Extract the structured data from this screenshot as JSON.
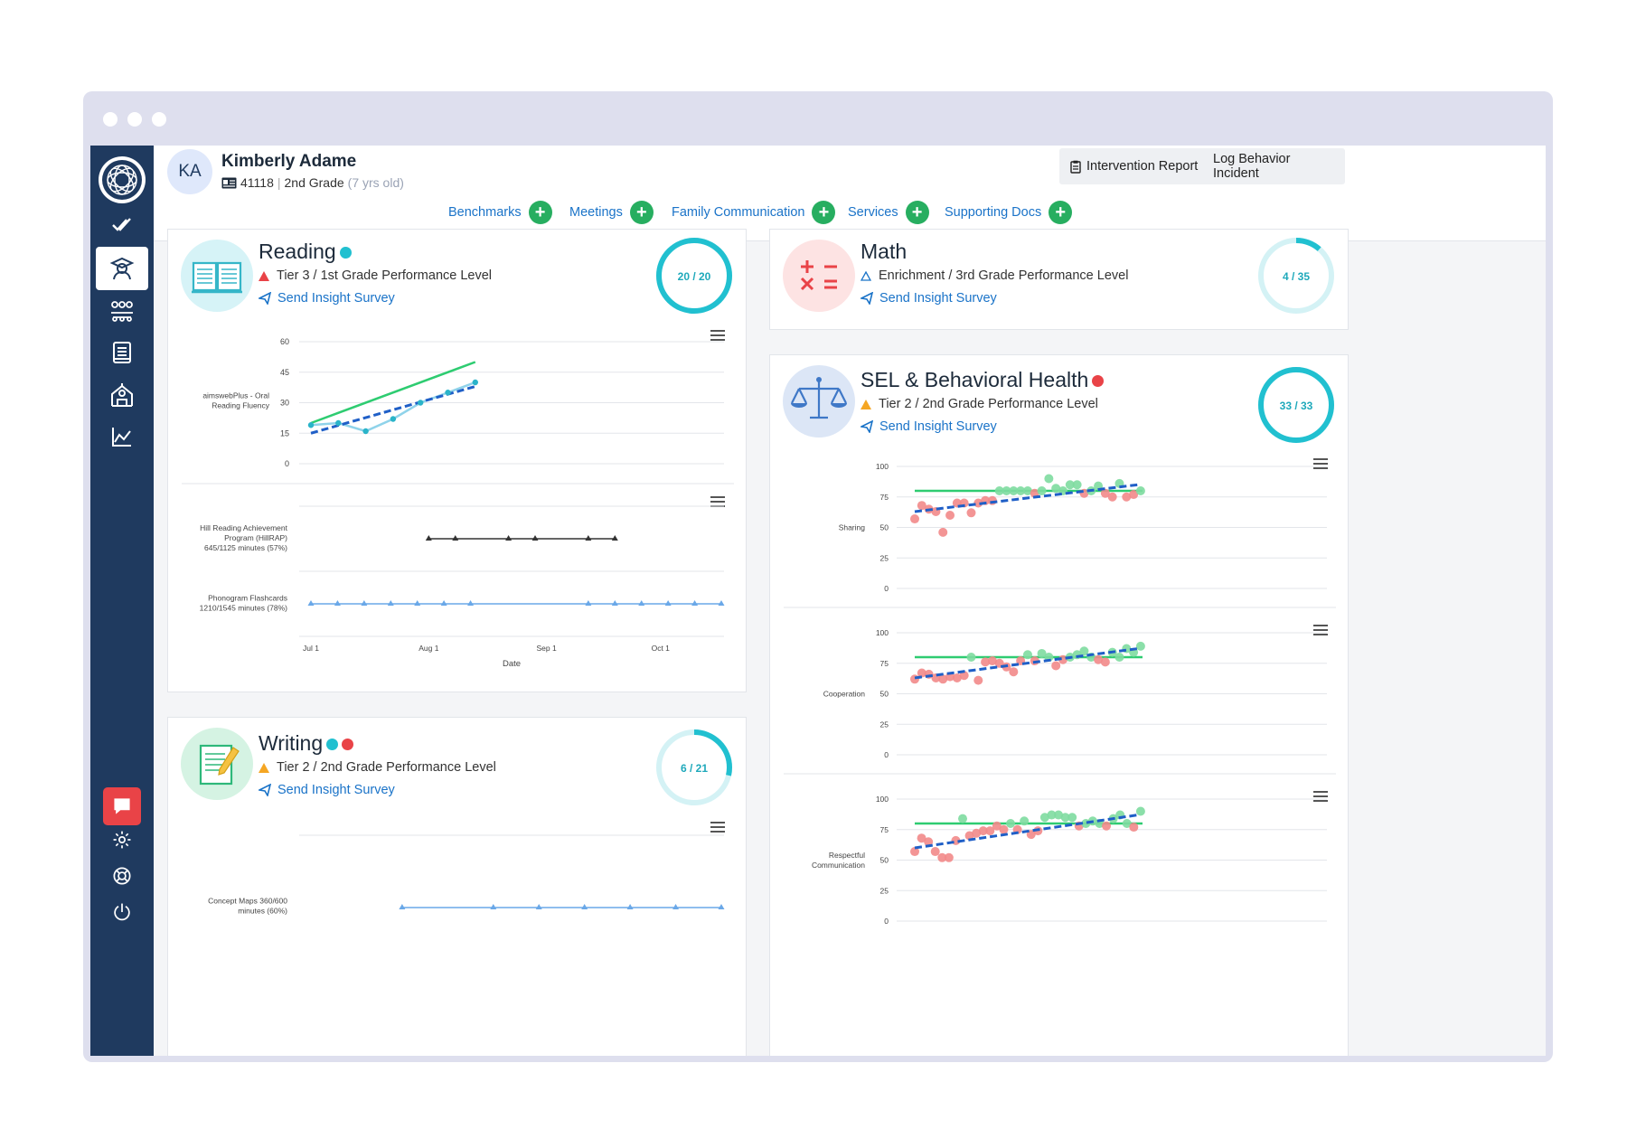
{
  "student": {
    "initials": "KA",
    "name": "Kimberly Adame",
    "id": "41118",
    "grade": "2nd Grade",
    "age": "(7 yrs old)"
  },
  "actions": {
    "intervention_report": "Intervention Report",
    "log_behavior": "Log Behavior Incident"
  },
  "nav": [
    {
      "label": "Benchmarks"
    },
    {
      "label": "Meetings"
    },
    {
      "label": "Family Communication"
    },
    {
      "label": "Services"
    },
    {
      "label": "Supporting Docs"
    }
  ],
  "sidebar_icons": [
    "logo-icon",
    "checkmark-icon",
    "student-icon",
    "group-icon",
    "book-icon",
    "school-icon",
    "chart-icon",
    "chat-icon",
    "settings-icon",
    "support-icon",
    "power-icon"
  ],
  "colors": {
    "sidebar": "#1f3a5f",
    "accent": "#1a73c8",
    "ring": "#21c0d0",
    "plus": "#27ae60",
    "alert": "#e94347",
    "warn": "#f5a623",
    "trend_actual": "#2ecc71",
    "trend_dash": "#1f5fc7"
  },
  "reading": {
    "title": "Reading",
    "tier": "Tier 3 / 1st Grade Performance Level",
    "survey": "Send Insight Survey",
    "progress_label": "20 / 20",
    "progress": 1.0
  },
  "math": {
    "title": "Math",
    "tier": "Enrichment / 3rd Grade Performance Level",
    "survey": "Send Insight Survey",
    "progress_label": "4 / 35",
    "progress": 0.114
  },
  "writing": {
    "title": "Writing",
    "tier": "Tier 2 / 2nd Grade Performance Level",
    "survey": "Send Insight Survey",
    "progress_label": "6 / 21",
    "progress": 0.286
  },
  "sel": {
    "title": "SEL & Behavioral Health",
    "tier": "Tier 2 / 2nd Grade Performance Level",
    "survey": "Send Insight Survey",
    "progress_label": "33 / 33",
    "progress": 1.0
  },
  "chart_data": [
    {
      "type": "line",
      "ylabel": "aimswebPlus - Oral Reading Fluency",
      "ylim": [
        0,
        60
      ],
      "yticks": [
        "60",
        "45",
        "30",
        "15",
        "0"
      ],
      "x": [
        "Jul 1",
        "Jul 8",
        "Jul 15",
        "Jul 22",
        "Jul 29",
        "Aug 5",
        "Aug 12"
      ],
      "series": [
        {
          "values": [
            19,
            20,
            16,
            22,
            30,
            35,
            40
          ]
        }
      ],
      "goal_line": [
        20,
        50
      ],
      "trend": [
        15,
        38
      ]
    },
    {
      "type": "line",
      "series": [
        {
          "name": "Hill Reading Achievement Program (HillRAP) 645/1125 minutes (57%)",
          "x": [
            "Aug 1",
            "Aug 8",
            "Aug 22",
            "Aug 29",
            "Sep 12",
            "Sep 19"
          ]
        },
        {
          "name": "Phonogram Flashcards 1210/1545 minutes (78%)",
          "x": [
            "Jul 1",
            "Jul 8",
            "Jul 15",
            "Jul 22",
            "Jul 29",
            "Aug 5",
            "Aug 12",
            "Sep 12",
            "Sep 19",
            "Sep 26",
            "Oct 3",
            "Oct 10",
            "Oct 17"
          ]
        }
      ],
      "xticks": [
        "Jul 1",
        "Aug 1",
        "Sep 1",
        "Oct 1"
      ],
      "xlabel": "Date"
    },
    {
      "type": "line",
      "series": [
        {
          "name": "Concept Maps 360/600 minutes (60%)",
          "x": [
            "Jul 29",
            "Aug 26",
            "Sep 9",
            "Sep 23",
            "Oct 7",
            "Oct 21",
            "Nov 4"
          ]
        }
      ]
    },
    {
      "type": "scatter",
      "ylabel": "Sharing",
      "ylim": [
        0,
        100
      ],
      "yticks": [
        "100",
        "75",
        "50",
        "25",
        "0"
      ],
      "goal": 80,
      "trend": [
        63,
        85
      ],
      "values": [
        57,
        68,
        65,
        63,
        46,
        60,
        70,
        70,
        62,
        70,
        72,
        72,
        80,
        80,
        80,
        80,
        80,
        78,
        80,
        90,
        82,
        80,
        85,
        85,
        78,
        80,
        84,
        78,
        75,
        86,
        75,
        77,
        80
      ]
    },
    {
      "type": "scatter",
      "ylabel": "Cooperation",
      "ylim": [
        0,
        100
      ],
      "yticks": [
        "100",
        "75",
        "50",
        "25",
        "0"
      ],
      "goal": 80,
      "trend": [
        63,
        87
      ],
      "values": [
        62,
        67,
        66,
        63,
        62,
        64,
        63,
        65,
        80,
        61,
        76,
        77,
        75,
        72,
        68,
        77,
        82,
        77,
        83,
        80,
        73,
        78,
        80,
        82,
        85,
        80,
        78,
        76,
        84,
        80,
        87,
        84,
        89
      ]
    },
    {
      "type": "scatter",
      "ylabel": "Respectful Communication",
      "ylim": [
        0,
        100
      ],
      "yticks": [
        "100",
        "75",
        "50",
        "25",
        "0"
      ],
      "goal": 80,
      "trend": [
        60,
        87
      ],
      "values": [
        57,
        68,
        65,
        57,
        52,
        52,
        66,
        84,
        70,
        72,
        74,
        74,
        78,
        75,
        80,
        75,
        82,
        71,
        74,
        85,
        87,
        87,
        85,
        85,
        78,
        80,
        82,
        80,
        78,
        84,
        87,
        80,
        77,
        90
      ]
    }
  ]
}
